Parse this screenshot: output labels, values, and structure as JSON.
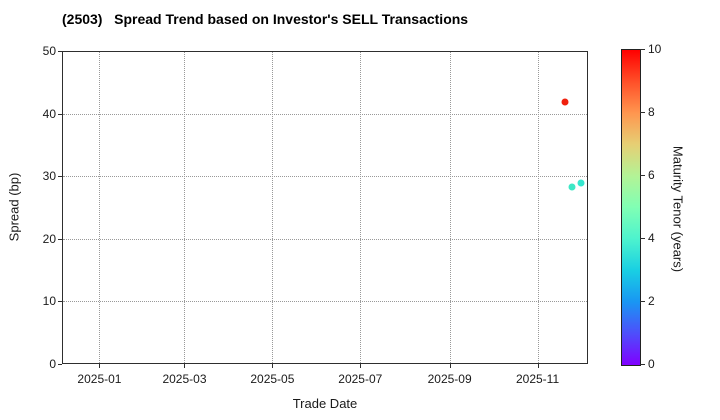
{
  "chart_data": {
    "type": "scatter",
    "title": "(2503)   Spread Trend based on Investor's SELL Transactions",
    "xlabel": "Trade Date",
    "ylabel": "Spread (bp)",
    "xlim": [
      "2024-12-06",
      "2025-12-06"
    ],
    "ylim": [
      0,
      50
    ],
    "yticks": [
      0,
      10,
      20,
      30,
      40,
      50
    ],
    "xticks": [
      {
        "date": "2025-01-01",
        "label": "2025-01"
      },
      {
        "date": "2025-03-01",
        "label": "2025-03"
      },
      {
        "date": "2025-05-01",
        "label": "2025-05"
      },
      {
        "date": "2025-07-01",
        "label": "2025-07"
      },
      {
        "date": "2025-09-01",
        "label": "2025-09"
      },
      {
        "date": "2025-11-01",
        "label": "2025-11"
      }
    ],
    "grid": {
      "on": true,
      "style": "dotted",
      "color": "#999999"
    },
    "points": [
      {
        "date": "2025-11-20",
        "spread_bp": 41.8,
        "maturity_years": 9.8,
        "color": "#f0210e"
      },
      {
        "date": "2025-11-25",
        "spread_bp": 28.3,
        "maturity_years": 4.0,
        "color": "#3de8c6"
      },
      {
        "date": "2025-12-01",
        "spread_bp": 28.9,
        "maturity_years": 3.9,
        "color": "#35e7cf"
      }
    ],
    "colorbar": {
      "label": "Maturity Tenor (years)",
      "min": 0,
      "max": 10,
      "ticks": [
        0,
        2,
        4,
        6,
        8,
        10
      ],
      "gradient_stops": [
        {
          "at": 0.0,
          "color": "#8000ff"
        },
        {
          "at": 0.1,
          "color": "#4e4efb"
        },
        {
          "at": 0.2,
          "color": "#1996f3"
        },
        {
          "at": 0.3,
          "color": "#19cfe3"
        },
        {
          "at": 0.4,
          "color": "#4df3ce"
        },
        {
          "at": 0.5,
          "color": "#80ffb4"
        },
        {
          "at": 0.6,
          "color": "#b3f396"
        },
        {
          "at": 0.7,
          "color": "#e6cf74"
        },
        {
          "at": 0.8,
          "color": "#ff964f"
        },
        {
          "at": 0.9,
          "color": "#ff4f28"
        },
        {
          "at": 1.0,
          "color": "#ff0000"
        }
      ]
    }
  }
}
